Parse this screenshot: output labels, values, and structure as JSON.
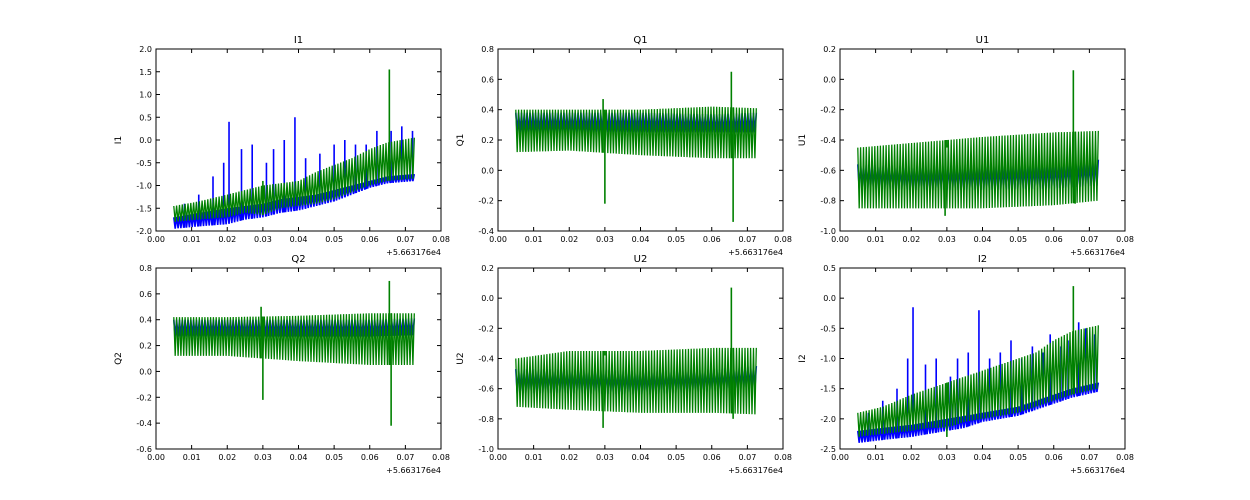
{
  "figure": {
    "colors": {
      "series_a": "#0000ff",
      "series_b": "#008000"
    }
  },
  "chart_data": [
    {
      "type": "line",
      "title": "I1",
      "ylabel": "I1",
      "x_offset": "+5.663176e4",
      "xlim": [
        0.0,
        0.08
      ],
      "ylim": [
        -2.0,
        2.0
      ],
      "xticks": [
        "0.00",
        "0.01",
        "0.02",
        "0.03",
        "0.04",
        "0.05",
        "0.06",
        "0.07",
        "0.08"
      ],
      "yticks": [
        "-2.0",
        "-1.5",
        "-1.0",
        "-0.5",
        "0.0",
        "0.5",
        "1.0",
        "1.5",
        "2.0"
      ],
      "series": [
        {
          "name": "blue",
          "color": "#0000ff",
          "x": [
            0.005,
            0.012,
            0.02,
            0.025,
            0.03,
            0.035,
            0.04,
            0.045,
            0.05,
            0.055,
            0.06,
            0.065,
            0.0725
          ],
          "min": [
            -1.95,
            -1.9,
            -1.85,
            -1.75,
            -1.7,
            -1.6,
            -1.55,
            -1.45,
            -1.35,
            -1.2,
            -1.05,
            -0.95,
            -0.9
          ],
          "max": [
            -1.7,
            -1.6,
            -1.5,
            -1.45,
            -1.4,
            -1.3,
            -1.25,
            -1.2,
            -1.1,
            -1.0,
            -0.9,
            -0.8,
            -0.75
          ],
          "spikes": [
            [
              0.008,
              -1.4
            ],
            [
              0.012,
              -1.2
            ],
            [
              0.016,
              -0.8
            ],
            [
              0.019,
              -0.5
            ],
            [
              0.0205,
              0.4
            ],
            [
              0.024,
              -0.2
            ],
            [
              0.027,
              -0.1
            ],
            [
              0.031,
              -0.5
            ],
            [
              0.033,
              -0.2
            ],
            [
              0.036,
              0.0
            ],
            [
              0.039,
              0.5
            ],
            [
              0.042,
              -0.4
            ],
            [
              0.046,
              -0.3
            ],
            [
              0.05,
              -0.1
            ],
            [
              0.053,
              0.0
            ],
            [
              0.056,
              -0.1
            ],
            [
              0.059,
              -0.1
            ],
            [
              0.062,
              0.2
            ],
            [
              0.066,
              0.2
            ],
            [
              0.069,
              0.3
            ],
            [
              0.072,
              0.2
            ]
          ]
        },
        {
          "name": "green",
          "color": "#008000",
          "x": [
            0.005,
            0.012,
            0.02,
            0.025,
            0.03,
            0.035,
            0.04,
            0.045,
            0.05,
            0.055,
            0.06,
            0.065,
            0.0725
          ],
          "min": [
            -1.8,
            -1.75,
            -1.7,
            -1.6,
            -1.65,
            -1.5,
            -1.45,
            -1.4,
            -1.3,
            -1.15,
            -1.0,
            -0.9,
            -0.85
          ],
          "max": [
            -1.45,
            -1.35,
            -1.2,
            -1.1,
            -1.0,
            -0.95,
            -0.9,
            -0.7,
            -0.55,
            -0.4,
            -0.2,
            -0.05,
            0.05
          ],
          "spikes": [
            [
              0.0655,
              1.55
            ],
            [
              0.03,
              -0.9
            ]
          ]
        }
      ]
    },
    {
      "type": "line",
      "title": "Q1",
      "ylabel": "Q1",
      "x_offset": "+5.663176e4",
      "xlim": [
        0.0,
        0.08
      ],
      "ylim": [
        -0.4,
        0.8
      ],
      "xticks": [
        "0.00",
        "0.01",
        "0.02",
        "0.03",
        "0.04",
        "0.05",
        "0.06",
        "0.07",
        "0.08"
      ],
      "yticks": [
        "-0.4",
        "-0.2",
        "0.0",
        "0.2",
        "0.4",
        "0.6",
        "0.8"
      ],
      "series": [
        {
          "name": "blue",
          "color": "#0000ff",
          "x": [
            0.005,
            0.02,
            0.04,
            0.06,
            0.0725
          ],
          "min": [
            0.25,
            0.25,
            0.25,
            0.25,
            0.25
          ],
          "max": [
            0.38,
            0.38,
            0.38,
            0.37,
            0.38
          ],
          "spikes": []
        },
        {
          "name": "green",
          "color": "#008000",
          "x": [
            0.005,
            0.02,
            0.04,
            0.06,
            0.0725
          ],
          "min": [
            0.12,
            0.13,
            0.1,
            0.08,
            0.08
          ],
          "max": [
            0.4,
            0.4,
            0.4,
            0.42,
            0.41
          ],
          "spikes": [
            [
              0.0295,
              0.47
            ],
            [
              0.03,
              -0.22
            ],
            [
              0.0655,
              0.65
            ],
            [
              0.066,
              -0.34
            ]
          ]
        }
      ]
    },
    {
      "type": "line",
      "title": "U1",
      "ylabel": "U1",
      "x_offset": "+5.663176e4",
      "xlim": [
        0.0,
        0.08
      ],
      "ylim": [
        -1.0,
        0.2
      ],
      "xticks": [
        "0.00",
        "0.01",
        "0.02",
        "0.03",
        "0.04",
        "0.05",
        "0.06",
        "0.07",
        "0.08"
      ],
      "yticks": [
        "-1.0",
        "-0.8",
        "-0.6",
        "-0.4",
        "-0.2",
        "0.0",
        "0.2"
      ],
      "series": [
        {
          "name": "blue",
          "color": "#0000ff",
          "x": [
            0.005,
            0.02,
            0.04,
            0.06,
            0.0725
          ],
          "min": [
            -0.72,
            -0.73,
            -0.73,
            -0.72,
            -0.7
          ],
          "max": [
            -0.56,
            -0.57,
            -0.56,
            -0.55,
            -0.53
          ],
          "spikes": []
        },
        {
          "name": "green",
          "color": "#008000",
          "x": [
            0.005,
            0.02,
            0.04,
            0.06,
            0.0725
          ],
          "min": [
            -0.85,
            -0.85,
            -0.85,
            -0.83,
            -0.8
          ],
          "max": [
            -0.45,
            -0.42,
            -0.38,
            -0.35,
            -0.34
          ],
          "spikes": [
            [
              0.0295,
              -0.9
            ],
            [
              0.03,
              -0.45
            ],
            [
              0.0655,
              0.06
            ],
            [
              0.066,
              -0.82
            ]
          ]
        }
      ]
    },
    {
      "type": "line",
      "title": "Q2",
      "ylabel": "Q2",
      "x_offset": "+5.663176e4",
      "xlim": [
        0.0,
        0.08
      ],
      "ylim": [
        -0.6,
        0.8
      ],
      "xticks": [
        "0.00",
        "0.01",
        "0.02",
        "0.03",
        "0.04",
        "0.05",
        "0.06",
        "0.07",
        "0.08"
      ],
      "yticks": [
        "-0.6",
        "-0.4",
        "-0.2",
        "0.0",
        "0.2",
        "0.4",
        "0.6",
        "0.8"
      ],
      "series": [
        {
          "name": "blue",
          "color": "#0000ff",
          "x": [
            0.005,
            0.02,
            0.04,
            0.06,
            0.0725
          ],
          "min": [
            0.27,
            0.27,
            0.27,
            0.27,
            0.28
          ],
          "max": [
            0.4,
            0.4,
            0.4,
            0.4,
            0.41
          ],
          "spikes": []
        },
        {
          "name": "green",
          "color": "#008000",
          "x": [
            0.005,
            0.02,
            0.04,
            0.06,
            0.0725
          ],
          "min": [
            0.12,
            0.12,
            0.08,
            0.05,
            0.05
          ],
          "max": [
            0.42,
            0.42,
            0.43,
            0.45,
            0.45
          ],
          "spikes": [
            [
              0.0295,
              0.5
            ],
            [
              0.03,
              -0.22
            ],
            [
              0.0655,
              0.7
            ],
            [
              0.066,
              -0.42
            ]
          ]
        }
      ]
    },
    {
      "type": "line",
      "title": "U2",
      "ylabel": "U2",
      "x_offset": "+5.663176e4",
      "xlim": [
        0.0,
        0.08
      ],
      "ylim": [
        -1.0,
        0.2
      ],
      "xticks": [
        "0.00",
        "0.01",
        "0.02",
        "0.03",
        "0.04",
        "0.05",
        "0.06",
        "0.07",
        "0.08"
      ],
      "yticks": [
        "-1.0",
        "-0.8",
        "-0.6",
        "-0.4",
        "-0.2",
        "0.0",
        "0.2"
      ],
      "series": [
        {
          "name": "blue",
          "color": "#0000ff",
          "x": [
            0.005,
            0.02,
            0.04,
            0.06,
            0.0725
          ],
          "min": [
            -0.63,
            -0.63,
            -0.64,
            -0.62,
            -0.6
          ],
          "max": [
            -0.47,
            -0.47,
            -0.48,
            -0.47,
            -0.45
          ],
          "spikes": []
        },
        {
          "name": "green",
          "color": "#008000",
          "x": [
            0.005,
            0.02,
            0.04,
            0.06,
            0.0725
          ],
          "min": [
            -0.72,
            -0.74,
            -0.76,
            -0.76,
            -0.77
          ],
          "max": [
            -0.4,
            -0.35,
            -0.35,
            -0.33,
            -0.33
          ],
          "spikes": [
            [
              0.0295,
              -0.86
            ],
            [
              0.03,
              -0.38
            ],
            [
              0.0655,
              0.07
            ],
            [
              0.066,
              -0.8
            ]
          ]
        }
      ]
    },
    {
      "type": "line",
      "title": "I2",
      "ylabel": "I2",
      "x_offset": "+5.663176e4",
      "xlim": [
        0.0,
        0.08
      ],
      "ylim": [
        -2.5,
        0.5
      ],
      "xticks": [
        "0.00",
        "0.01",
        "0.02",
        "0.03",
        "0.04",
        "0.05",
        "0.06",
        "0.07",
        "0.08"
      ],
      "yticks": [
        "-2.5",
        "-2.0",
        "-1.5",
        "-1.0",
        "-0.5",
        "0.0",
        "0.5"
      ],
      "series": [
        {
          "name": "blue",
          "color": "#0000ff",
          "x": [
            0.005,
            0.012,
            0.02,
            0.025,
            0.03,
            0.035,
            0.04,
            0.045,
            0.05,
            0.055,
            0.06,
            0.065,
            0.0725
          ],
          "min": [
            -2.4,
            -2.35,
            -2.3,
            -2.25,
            -2.2,
            -2.15,
            -2.05,
            -2.0,
            -1.95,
            -1.85,
            -1.75,
            -1.65,
            -1.55
          ],
          "max": [
            -2.2,
            -2.15,
            -2.1,
            -2.05,
            -2.0,
            -1.95,
            -1.9,
            -1.85,
            -1.8,
            -1.7,
            -1.6,
            -1.5,
            -1.4
          ],
          "spikes": [
            [
              0.008,
              -1.9
            ],
            [
              0.012,
              -1.7
            ],
            [
              0.016,
              -1.5
            ],
            [
              0.019,
              -1.0
            ],
            [
              0.0205,
              -0.15
            ],
            [
              0.024,
              -1.1
            ],
            [
              0.027,
              -1.0
            ],
            [
              0.031,
              -1.3
            ],
            [
              0.033,
              -1.0
            ],
            [
              0.036,
              -0.9
            ],
            [
              0.039,
              -0.2
            ],
            [
              0.042,
              -1.0
            ],
            [
              0.045,
              -0.9
            ],
            [
              0.048,
              -0.7
            ],
            [
              0.051,
              -1.0
            ],
            [
              0.054,
              -0.8
            ],
            [
              0.057,
              -0.9
            ],
            [
              0.059,
              -0.6
            ],
            [
              0.062,
              -0.8
            ],
            [
              0.064,
              -0.7
            ],
            [
              0.067,
              -0.4
            ],
            [
              0.069,
              -0.5
            ],
            [
              0.0715,
              -0.6
            ]
          ]
        },
        {
          "name": "green",
          "color": "#008000",
          "x": [
            0.005,
            0.012,
            0.02,
            0.025,
            0.03,
            0.035,
            0.04,
            0.045,
            0.05,
            0.055,
            0.06,
            0.065,
            0.0725
          ],
          "min": [
            -2.3,
            -2.25,
            -2.2,
            -2.15,
            -2.15,
            -2.05,
            -2.0,
            -1.95,
            -1.9,
            -1.8,
            -1.7,
            -1.6,
            -1.5
          ],
          "max": [
            -1.9,
            -1.8,
            -1.6,
            -1.5,
            -1.4,
            -1.3,
            -1.2,
            -1.1,
            -1.0,
            -0.9,
            -0.7,
            -0.55,
            -0.45
          ],
          "spikes": [
            [
              0.0655,
              0.2
            ],
            [
              0.03,
              -2.3
            ]
          ]
        }
      ]
    }
  ]
}
